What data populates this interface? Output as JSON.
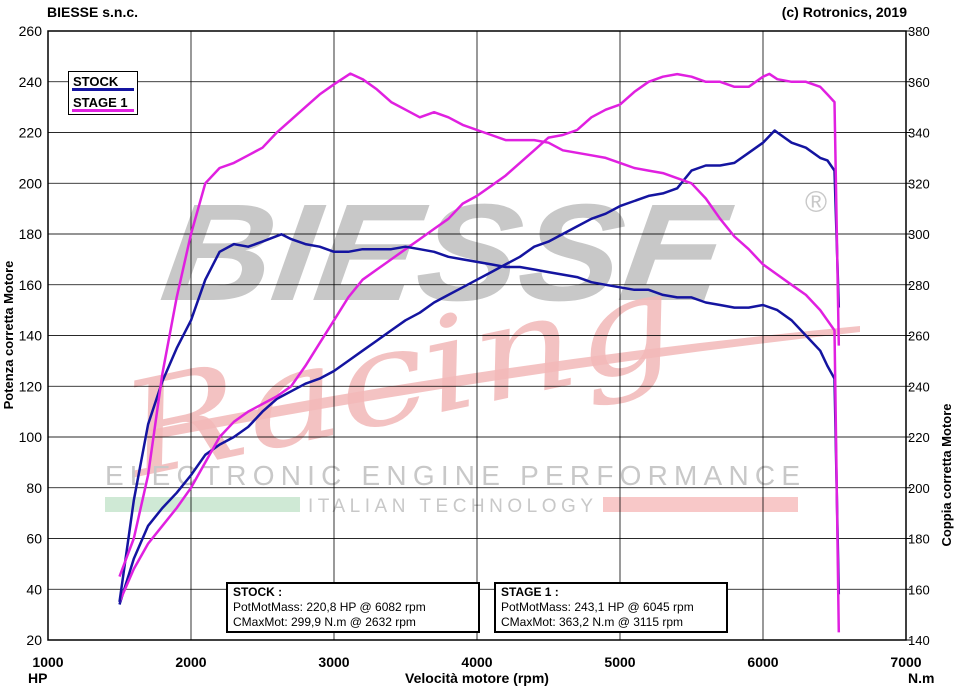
{
  "header": {
    "left": "BIESSE s.n.c.",
    "right": "(c) Rotronics, 2019"
  },
  "watermark": {
    "brand": "BIESSE",
    "registered": "®",
    "script": "Racing",
    "line1": "ELECTRONIC ENGINE PERFORMANCE",
    "line2": "ITALIAN TECHNOLOGY",
    "colors": {
      "brand": "#c8c8c8",
      "script": "#f2b8b8",
      "green": "#cfe9d5",
      "red": "#f8c8c8"
    }
  },
  "legend": {
    "items": [
      {
        "label": "STOCK",
        "color": "#1414a0"
      },
      {
        "label": "STAGE 1",
        "color": "#e020e0"
      }
    ]
  },
  "summary": {
    "stock": {
      "title": "STOCK :",
      "line1": "PotMotMass: 220,8 HP @ 6082 rpm",
      "line2": "CMaxMot: 299,9 N.m @ 2632 rpm"
    },
    "stage1": {
      "title": "STAGE 1 :",
      "line1": "PotMotMass: 243,1 HP @ 6045 rpm",
      "line2": "CMaxMot: 363,2 N.m @ 3115 rpm"
    }
  },
  "chart_data": {
    "type": "line",
    "xlabel": "Velocità motore (rpm)",
    "ylabel_left": "Potenza corretta Motore",
    "ylabel_right": "Coppia corretta Motore",
    "unit_left": "HP",
    "unit_right": "N.m",
    "xlim": [
      1000,
      7000
    ],
    "ylim_left": [
      20,
      260
    ],
    "ylim_right": [
      140,
      380
    ],
    "x_ticks": [
      1000,
      2000,
      3000,
      4000,
      5000,
      6000,
      7000
    ],
    "y_left_ticks": [
      20,
      40,
      60,
      80,
      100,
      120,
      140,
      160,
      180,
      200,
      220,
      240,
      260
    ],
    "y_right_ticks": [
      140,
      160,
      180,
      200,
      220,
      240,
      260,
      280,
      300,
      320,
      340,
      360,
      380
    ],
    "grid": true,
    "legend_position": "top-left",
    "series": [
      {
        "name": "STOCK",
        "quantity": "power",
        "axis": "left",
        "color": "#1414a0",
        "x": [
          1500,
          1600,
          1700,
          1800,
          1900,
          2000,
          2100,
          2200,
          2300,
          2400,
          2500,
          2600,
          2700,
          2800,
          2900,
          3000,
          3100,
          3200,
          3300,
          3400,
          3500,
          3600,
          3700,
          3800,
          3900,
          4000,
          4100,
          4200,
          4300,
          4400,
          4500,
          4600,
          4700,
          4800,
          4900,
          5000,
          5100,
          5200,
          5300,
          5400,
          5500,
          5600,
          5700,
          5800,
          5900,
          6000,
          6082,
          6100,
          6200,
          6300,
          6400,
          6450,
          6500,
          6530
        ],
        "y": [
          34,
          52,
          65,
          72,
          78,
          85,
          93,
          97,
          100,
          104,
          110,
          115,
          118,
          121,
          123,
          126,
          130,
          134,
          138,
          142,
          146,
          149,
          153,
          156,
          159,
          162,
          165,
          168,
          171,
          175,
          177,
          180,
          183,
          186,
          188,
          191,
          193,
          195,
          196,
          198,
          205,
          207,
          207,
          208,
          212,
          216,
          220.8,
          220,
          216,
          214,
          210,
          209,
          205,
          151
        ]
      },
      {
        "name": "STAGE 1",
        "quantity": "power",
        "axis": "left",
        "color": "#e020e0",
        "x": [
          1500,
          1600,
          1700,
          1800,
          1900,
          2000,
          2100,
          2200,
          2300,
          2400,
          2500,
          2600,
          2700,
          2800,
          2900,
          3000,
          3100,
          3200,
          3300,
          3400,
          3500,
          3600,
          3700,
          3800,
          3900,
          4000,
          4100,
          4200,
          4300,
          4400,
          4500,
          4600,
          4700,
          4800,
          4900,
          5000,
          5100,
          5200,
          5300,
          5400,
          5500,
          5600,
          5700,
          5800,
          5900,
          6000,
          6045,
          6100,
          6200,
          6300,
          6400,
          6450,
          6500,
          6530
        ],
        "y": [
          35,
          48,
          58,
          65,
          72,
          80,
          90,
          100,
          106,
          110,
          113,
          116,
          120,
          128,
          137,
          146,
          155,
          162,
          166,
          170,
          174,
          178,
          182,
          186,
          192,
          195,
          199,
          203,
          208,
          213,
          218,
          219,
          221,
          226,
          229,
          231,
          236,
          240,
          242,
          243,
          242,
          240,
          240,
          238,
          238,
          242,
          243.1,
          241,
          240,
          240,
          238,
          235,
          232,
          136
        ]
      },
      {
        "name": "STOCK",
        "quantity": "torque",
        "axis": "right",
        "color": "#1414a0",
        "x": [
          1500,
          1600,
          1700,
          1800,
          1900,
          2000,
          2100,
          2200,
          2300,
          2400,
          2500,
          2632,
          2700,
          2800,
          2900,
          3000,
          3100,
          3200,
          3300,
          3400,
          3500,
          3600,
          3700,
          3800,
          3900,
          4000,
          4100,
          4200,
          4300,
          4400,
          4500,
          4600,
          4700,
          4800,
          4900,
          5000,
          5100,
          5200,
          5300,
          5400,
          5500,
          5600,
          5700,
          5800,
          5900,
          6000,
          6100,
          6200,
          6300,
          6400,
          6450,
          6500,
          6530
        ],
        "y": [
          155,
          195,
          225,
          242,
          255,
          266,
          282,
          293,
          296,
          295,
          297,
          299.9,
          298,
          296,
          295,
          293,
          293,
          294,
          294,
          294,
          295,
          294,
          293,
          291,
          290,
          289,
          288,
          287,
          287,
          286,
          285,
          284,
          283,
          281,
          280,
          279,
          278,
          278,
          276,
          275,
          275,
          273,
          272,
          271,
          271,
          272,
          270,
          266,
          260,
          254,
          248,
          243,
          158
        ]
      },
      {
        "name": "STAGE 1",
        "quantity": "torque",
        "axis": "right",
        "color": "#e020e0",
        "x": [
          1500,
          1600,
          1700,
          1800,
          1900,
          2000,
          2100,
          2200,
          2300,
          2400,
          2500,
          2600,
          2700,
          2800,
          2900,
          3000,
          3115,
          3200,
          3300,
          3400,
          3500,
          3600,
          3700,
          3800,
          3900,
          4000,
          4100,
          4200,
          4300,
          4400,
          4500,
          4600,
          4700,
          4800,
          4900,
          5000,
          5100,
          5200,
          5300,
          5400,
          5500,
          5600,
          5700,
          5800,
          5900,
          6000,
          6100,
          6200,
          6300,
          6400,
          6450,
          6500,
          6530
        ],
        "y": [
          165,
          180,
          205,
          245,
          275,
          300,
          320,
          326,
          328,
          331,
          334,
          340,
          345,
          350,
          355,
          359,
          363.2,
          361,
          357,
          352,
          349,
          346,
          348,
          346,
          343,
          341,
          339,
          337,
          337,
          337,
          336,
          333,
          332,
          331,
          330,
          328,
          326,
          325,
          324,
          322,
          320,
          314,
          306,
          299,
          294,
          288,
          284,
          280,
          276,
          270,
          266,
          262,
          143
        ]
      }
    ]
  }
}
